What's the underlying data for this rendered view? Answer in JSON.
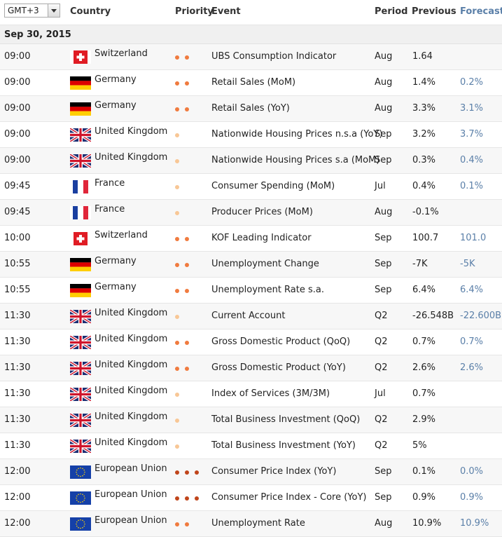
{
  "header": {
    "timezone": "GMT+3",
    "col_country": "Country",
    "col_priority": "Priority",
    "col_event": "Event",
    "col_period": "Period",
    "col_previous": "Previous",
    "col_forecast": "Forecast"
  },
  "date": "Sep 30, 2015",
  "colors": {
    "prio_high": "#c0451b",
    "prio_med": "#f07b3f",
    "prio_low": "#f8c796",
    "forecast": "#5a7fa8"
  },
  "rows": [
    {
      "time": "09:00",
      "flag": "ch",
      "country": "Switzerland",
      "priority": 2,
      "event": "UBS Consumption Indicator",
      "period": "Aug",
      "previous": "1.64",
      "forecast": ""
    },
    {
      "time": "09:00",
      "flag": "de",
      "country": "Germany",
      "priority": 2,
      "event": "Retail Sales (MoM)",
      "period": "Aug",
      "previous": "1.4%",
      "forecast": "0.2%"
    },
    {
      "time": "09:00",
      "flag": "de",
      "country": "Germany",
      "priority": 2,
      "event": "Retail Sales (YoY)",
      "period": "Aug",
      "previous": "3.3%",
      "forecast": "3.1%"
    },
    {
      "time": "09:00",
      "flag": "uk",
      "country": "United Kingdom",
      "priority": 1,
      "event": "Nationwide Housing Prices n.s.a (YoY)",
      "period": "Sep",
      "previous": "3.2%",
      "forecast": "3.7%"
    },
    {
      "time": "09:00",
      "flag": "uk",
      "country": "United Kingdom",
      "priority": 1,
      "event": "Nationwide Housing Prices s.a (MoM)",
      "period": "Sep",
      "previous": "0.3%",
      "forecast": "0.4%"
    },
    {
      "time": "09:45",
      "flag": "fr",
      "country": "France",
      "priority": 1,
      "event": "Consumer Spending (MoM)",
      "period": "Jul",
      "previous": "0.4%",
      "forecast": "0.1%"
    },
    {
      "time": "09:45",
      "flag": "fr",
      "country": "France",
      "priority": 1,
      "event": "Producer Prices (MoM)",
      "period": "Aug",
      "previous": "-0.1%",
      "forecast": ""
    },
    {
      "time": "10:00",
      "flag": "ch",
      "country": "Switzerland",
      "priority": 2,
      "event": "KOF Leading Indicator",
      "period": "Sep",
      "previous": "100.7",
      "forecast": "101.0"
    },
    {
      "time": "10:55",
      "flag": "de",
      "country": "Germany",
      "priority": 2,
      "event": "Unemployment Change",
      "period": "Sep",
      "previous": "-7K",
      "forecast": "-5K"
    },
    {
      "time": "10:55",
      "flag": "de",
      "country": "Germany",
      "priority": 2,
      "event": "Unemployment Rate s.a.",
      "period": "Sep",
      "previous": "6.4%",
      "forecast": "6.4%"
    },
    {
      "time": "11:30",
      "flag": "uk",
      "country": "United Kingdom",
      "priority": 1,
      "event": "Current Account",
      "period": "Q2",
      "previous": "-26.548B",
      "forecast": "-22.600B"
    },
    {
      "time": "11:30",
      "flag": "uk",
      "country": "United Kingdom",
      "priority": 2,
      "event": "Gross Domestic Product (QoQ)",
      "period": "Q2",
      "previous": "0.7%",
      "forecast": "0.7%"
    },
    {
      "time": "11:30",
      "flag": "uk",
      "country": "United Kingdom",
      "priority": 2,
      "event": "Gross Domestic Product (YoY)",
      "period": "Q2",
      "previous": "2.6%",
      "forecast": "2.6%"
    },
    {
      "time": "11:30",
      "flag": "uk",
      "country": "United Kingdom",
      "priority": 1,
      "event": "Index of Services (3M/3M)",
      "period": "Jul",
      "previous": "0.7%",
      "forecast": ""
    },
    {
      "time": "11:30",
      "flag": "uk",
      "country": "United Kingdom",
      "priority": 1,
      "event": "Total Business Investment (QoQ)",
      "period": "Q2",
      "previous": "2.9%",
      "forecast": ""
    },
    {
      "time": "11:30",
      "flag": "uk",
      "country": "United Kingdom",
      "priority": 1,
      "event": "Total Business Investment (YoY)",
      "period": "Q2",
      "previous": "5%",
      "forecast": ""
    },
    {
      "time": "12:00",
      "flag": "eu",
      "country": "European Union",
      "priority": 3,
      "event": "Consumer Price Index (YoY)",
      "period": "Sep",
      "previous": "0.1%",
      "forecast": "0.0%"
    },
    {
      "time": "12:00",
      "flag": "eu",
      "country": "European Union",
      "priority": 3,
      "event": "Consumer Price Index - Core (YoY)",
      "period": "Sep",
      "previous": "0.9%",
      "forecast": "0.9%"
    },
    {
      "time": "12:00",
      "flag": "eu",
      "country": "European Union",
      "priority": 2,
      "event": "Unemployment Rate",
      "period": "Aug",
      "previous": "10.9%",
      "forecast": "10.9%"
    }
  ]
}
